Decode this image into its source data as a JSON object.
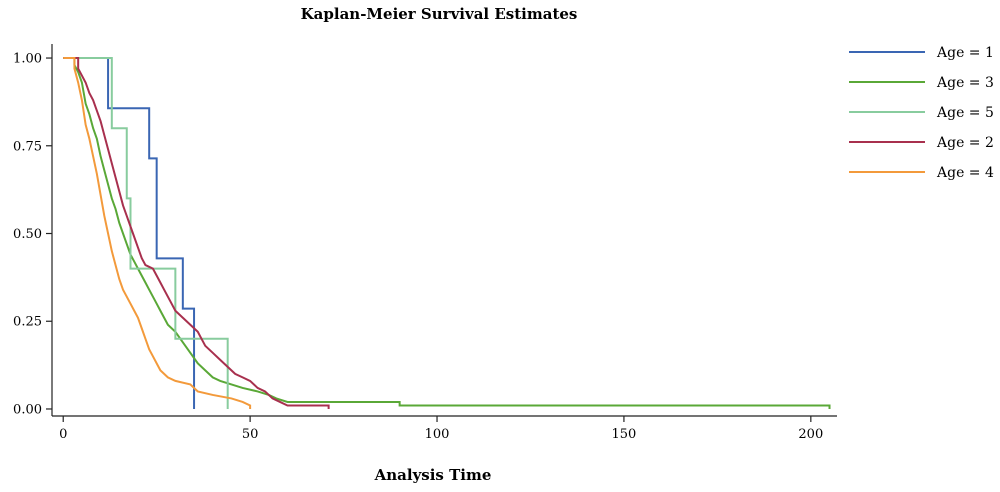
{
  "chart_data": {
    "type": "line",
    "title": "Kaplan-Meier Survival Estimates",
    "xlabel": "Analysis Time",
    "ylabel": "",
    "xlim": [
      -3,
      207
    ],
    "ylim": [
      -0.02,
      1.04
    ],
    "x_ticks": [
      0,
      50,
      100,
      150,
      200
    ],
    "x_tick_labels": [
      "0",
      "50",
      "100",
      "150",
      "200"
    ],
    "y_ticks": [
      0,
      0.25,
      0.5,
      0.75,
      1
    ],
    "y_tick_labels": [
      "0.00",
      "0.25",
      "0.50",
      "0.75",
      "1.00"
    ],
    "grid": false,
    "legend_position": "top-right",
    "series": [
      {
        "name": "Age = 1",
        "color": "#3a66b3",
        "points": [
          [
            0,
            1
          ],
          [
            12,
            1
          ],
          [
            12,
            0.857
          ],
          [
            23,
            0.857
          ],
          [
            23,
            0.714
          ],
          [
            25,
            0.714
          ],
          [
            25,
            0.429
          ],
          [
            32,
            0.429
          ],
          [
            32,
            0.286
          ],
          [
            35,
            0.286
          ],
          [
            35,
            0
          ]
        ]
      },
      {
        "name": "Age = 3",
        "color": "#5aa837",
        "points": [
          [
            0,
            1
          ],
          [
            3,
            1
          ],
          [
            3,
            0.98
          ],
          [
            4,
            0.96
          ],
          [
            5,
            0.93
          ],
          [
            6,
            0.87
          ],
          [
            7,
            0.84
          ],
          [
            8,
            0.8
          ],
          [
            9,
            0.77
          ],
          [
            10,
            0.72
          ],
          [
            11,
            0.68
          ],
          [
            12,
            0.64
          ],
          [
            13,
            0.6
          ],
          [
            14,
            0.57
          ],
          [
            15,
            0.53
          ],
          [
            16,
            0.5
          ],
          [
            17,
            0.47
          ],
          [
            18,
            0.44
          ],
          [
            19,
            0.42
          ],
          [
            20,
            0.4
          ],
          [
            21,
            0.38
          ],
          [
            22,
            0.36
          ],
          [
            23,
            0.34
          ],
          [
            24,
            0.32
          ],
          [
            25,
            0.3
          ],
          [
            26,
            0.28
          ],
          [
            27,
            0.26
          ],
          [
            28,
            0.24
          ],
          [
            30,
            0.22
          ],
          [
            32,
            0.19
          ],
          [
            34,
            0.16
          ],
          [
            36,
            0.13
          ],
          [
            38,
            0.11
          ],
          [
            40,
            0.09
          ],
          [
            42,
            0.08
          ],
          [
            45,
            0.07
          ],
          [
            48,
            0.06
          ],
          [
            52,
            0.05
          ],
          [
            55,
            0.04
          ],
          [
            57,
            0.03
          ],
          [
            60,
            0.02
          ],
          [
            90,
            0.02
          ],
          [
            90,
            0.01
          ],
          [
            205,
            0.01
          ],
          [
            205,
            0
          ]
        ]
      },
      {
        "name": "Age = 5",
        "color": "#88cc9e",
        "points": [
          [
            0,
            1
          ],
          [
            13,
            1
          ],
          [
            13,
            0.8
          ],
          [
            17,
            0.8
          ],
          [
            17,
            0.6
          ],
          [
            18,
            0.6
          ],
          [
            18,
            0.4
          ],
          [
            30,
            0.4
          ],
          [
            30,
            0.2
          ],
          [
            44,
            0.2
          ],
          [
            44,
            0
          ]
        ]
      },
      {
        "name": "Age = 2",
        "color": "#a8304e",
        "points": [
          [
            0,
            1
          ],
          [
            4,
            1
          ],
          [
            4,
            0.97
          ],
          [
            5,
            0.95
          ],
          [
            6,
            0.93
          ],
          [
            7,
            0.9
          ],
          [
            8,
            0.88
          ],
          [
            9,
            0.85
          ],
          [
            10,
            0.82
          ],
          [
            11,
            0.78
          ],
          [
            12,
            0.74
          ],
          [
            13,
            0.7
          ],
          [
            14,
            0.66
          ],
          [
            15,
            0.62
          ],
          [
            16,
            0.58
          ],
          [
            17,
            0.55
          ],
          [
            18,
            0.52
          ],
          [
            19,
            0.49
          ],
          [
            20,
            0.46
          ],
          [
            21,
            0.43
          ],
          [
            22,
            0.41
          ],
          [
            24,
            0.4
          ],
          [
            25,
            0.38
          ],
          [
            26,
            0.36
          ],
          [
            27,
            0.34
          ],
          [
            28,
            0.32
          ],
          [
            29,
            0.3
          ],
          [
            30,
            0.28
          ],
          [
            32,
            0.26
          ],
          [
            34,
            0.24
          ],
          [
            36,
            0.22
          ],
          [
            37,
            0.2
          ],
          [
            38,
            0.18
          ],
          [
            40,
            0.16
          ],
          [
            42,
            0.14
          ],
          [
            44,
            0.12
          ],
          [
            46,
            0.1
          ],
          [
            48,
            0.09
          ],
          [
            50,
            0.08
          ],
          [
            52,
            0.06
          ],
          [
            54,
            0.05
          ],
          [
            56,
            0.03
          ],
          [
            58,
            0.02
          ],
          [
            60,
            0.01
          ],
          [
            71,
            0.01
          ],
          [
            71,
            0
          ]
        ]
      },
      {
        "name": "Age = 4",
        "color": "#f39a3b",
        "points": [
          [
            0,
            1
          ],
          [
            3,
            1
          ],
          [
            3,
            0.97
          ],
          [
            4,
            0.93
          ],
          [
            5,
            0.88
          ],
          [
            6,
            0.81
          ],
          [
            7,
            0.77
          ],
          [
            8,
            0.72
          ],
          [
            9,
            0.67
          ],
          [
            10,
            0.61
          ],
          [
            11,
            0.55
          ],
          [
            12,
            0.5
          ],
          [
            13,
            0.45
          ],
          [
            14,
            0.41
          ],
          [
            15,
            0.37
          ],
          [
            16,
            0.34
          ],
          [
            17,
            0.32
          ],
          [
            18,
            0.3
          ],
          [
            19,
            0.28
          ],
          [
            20,
            0.26
          ],
          [
            21,
            0.23
          ],
          [
            22,
            0.2
          ],
          [
            23,
            0.17
          ],
          [
            24,
            0.15
          ],
          [
            25,
            0.13
          ],
          [
            26,
            0.11
          ],
          [
            28,
            0.09
          ],
          [
            30,
            0.08
          ],
          [
            34,
            0.07
          ],
          [
            36,
            0.05
          ],
          [
            40,
            0.04
          ],
          [
            45,
            0.03
          ],
          [
            48,
            0.02
          ],
          [
            50,
            0.01
          ],
          [
            50,
            0
          ]
        ]
      }
    ]
  }
}
